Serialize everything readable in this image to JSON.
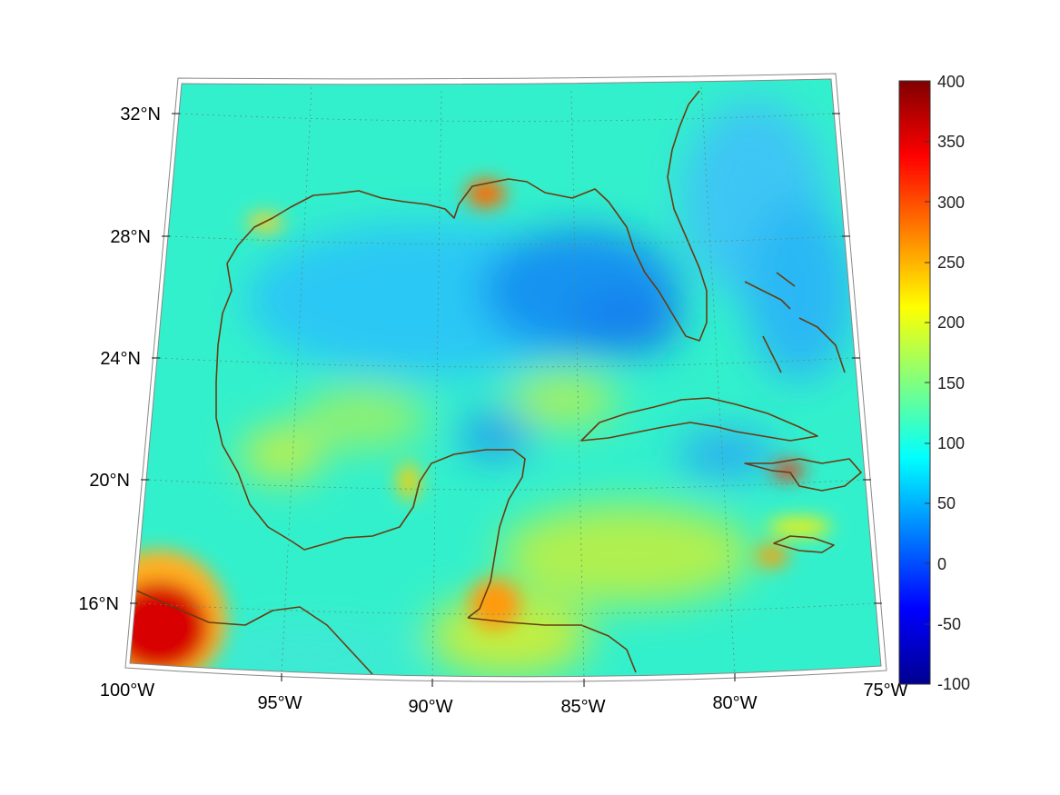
{
  "map": {
    "projection": "lambert-conic",
    "lon_labels": [
      "100°W",
      "95°W",
      "90°W",
      "85°W",
      "80°W",
      "75°W"
    ],
    "lat_labels": [
      "16°N",
      "20°N",
      "24°N",
      "28°N",
      "32°N"
    ],
    "gridlines": "dotted",
    "coastline_color": "#6b3a10"
  },
  "colorbar": {
    "colormap": "jet",
    "min": -100,
    "max": 400,
    "tick_labels": [
      "400",
      "350",
      "300",
      "250",
      "200",
      "150",
      "100",
      "50",
      "0",
      "-50",
      "-100"
    ],
    "placement": "right"
  },
  "field": {
    "background_level": 110,
    "hotspots": [
      {
        "region": "southwest corner (southern Mexico)",
        "value": 390
      },
      {
        "region": "Mississippi delta",
        "value": 300
      },
      {
        "region": "Haiti",
        "value": 320
      },
      {
        "region": "Jamaica",
        "value": 260
      },
      {
        "region": "Belize / Honduras coast",
        "value": 260
      },
      {
        "region": "Campeche",
        "value": 215
      }
    ],
    "lows": [
      {
        "region": "eastern Gulf of Mexico",
        "value": 25
      },
      {
        "region": "north of Yucatan",
        "value": 45
      },
      {
        "region": "south of Cuba",
        "value": 50
      }
    ]
  }
}
